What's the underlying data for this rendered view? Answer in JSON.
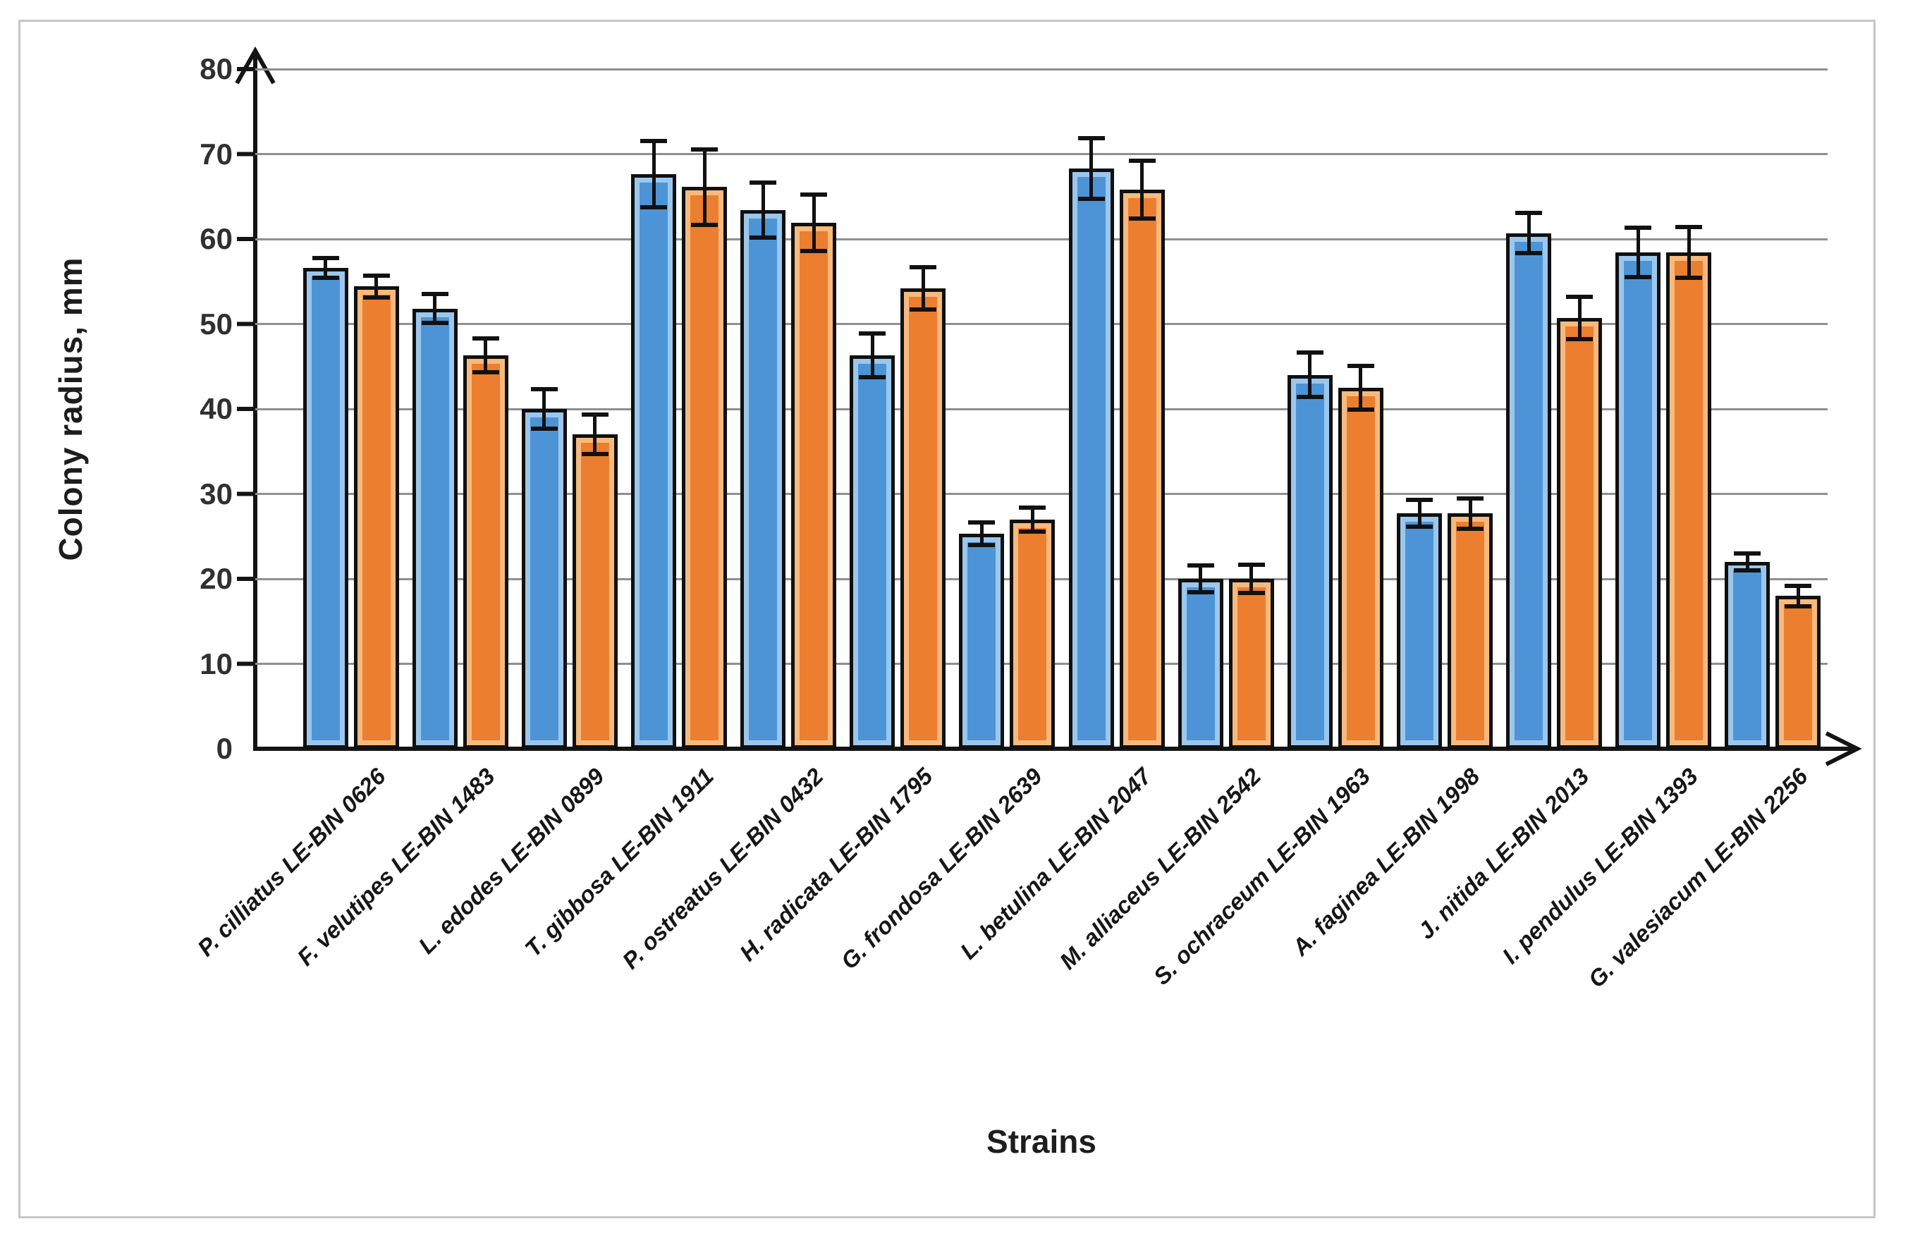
{
  "figure": {
    "x_axis_title": "Strains",
    "y_axis_title": "Colony radius, mm"
  },
  "chart_data": {
    "type": "bar",
    "title": "",
    "xlabel": "Strains",
    "ylabel": "Colony radius, mm",
    "ylim": [
      0,
      80
    ],
    "ytick_step": 10,
    "ytick_labels": [
      "0",
      "10",
      "20",
      "30",
      "40",
      "50",
      "60",
      "70",
      "80"
    ],
    "grid": true,
    "legend_position": "none",
    "error_bars": true,
    "categories": [
      "P. cilliatus LE-BIN 0626",
      "F. velutipes LE-BIN 1483",
      "L. edodes LE-BIN 0899",
      "T. gibbosa LE-BIN 1911",
      "P. ostreatus LE-BIN 0432",
      "H. radicata LE-BIN 1795",
      "G. frondosa LE-BIN 2639",
      "L. betulina LE-BIN 2047",
      "M. alliaceus LE-BIN 2542",
      "S. ochraceum LE-BIN 1963",
      "A. faginea LE-BIN 1998",
      "J. nitida LE-BIN 2013",
      "I. pendulus LE-BIN 1393",
      "G. valesiacum LE-BIN 2256"
    ],
    "series": [
      {
        "key": "blue-series",
        "color": "#4D94D6",
        "highlight_color": "#9CC7EC",
        "values": [
          56.6,
          51.8,
          40.0,
          67.6,
          63.4,
          46.3,
          25.3,
          68.3,
          20.0,
          44.0,
          27.7,
          60.7,
          58.4,
          22.0
        ],
        "errors": [
          1.2,
          1.7,
          2.3,
          3.9,
          3.2,
          2.6,
          1.3,
          3.6,
          1.6,
          2.6,
          1.6,
          2.4,
          2.9,
          1.0
        ]
      },
      {
        "key": "orange-series",
        "color": "#EC7E2F",
        "highlight_color": "#F6BA7E",
        "values": [
          54.4,
          46.3,
          37.0,
          66.1,
          61.9,
          54.2,
          27.0,
          65.8,
          20.0,
          42.5,
          27.7,
          50.7,
          58.4,
          18.0
        ],
        "errors": [
          1.3,
          2.0,
          2.3,
          4.4,
          3.3,
          2.5,
          1.4,
          3.4,
          1.7,
          2.6,
          1.8,
          2.5,
          3.0,
          1.2
        ]
      }
    ],
    "style": {
      "axis_color": "#141414",
      "gridline_color": "#8f8f8f",
      "error_bar_color": "#111111",
      "frame_color": "#c6c6c6"
    }
  }
}
